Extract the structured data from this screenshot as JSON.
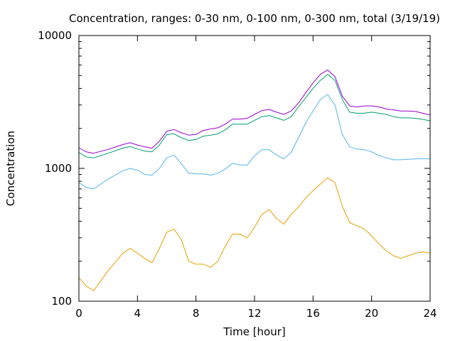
{
  "chart_data": {
    "type": "line",
    "title": "Concentration, ranges: 0-30 nm, 0-100 nm, 0-300 nm, total (3/19/19)",
    "xlabel": "Time [hour]",
    "ylabel": "Concentration",
    "xlim": [
      0,
      24
    ],
    "ylim": [
      100,
      10000
    ],
    "yscale": "log",
    "grid": false,
    "legend": "none",
    "x_ticks": [
      0,
      4,
      8,
      12,
      16,
      20,
      24
    ],
    "y_ticks": [
      100,
      1000,
      10000
    ],
    "x_tick_labels": [
      "0",
      "4",
      "8",
      "12",
      "16",
      "20",
      "24"
    ],
    "y_tick_labels": [
      "100",
      "1000",
      "10000"
    ],
    "x": [
      0,
      0.5,
      1,
      2,
      3,
      3.5,
      4,
      4.5,
      5,
      5.5,
      6,
      6.5,
      7,
      7.5,
      8,
      8.5,
      9,
      9.5,
      10,
      10.5,
      11,
      11.5,
      12,
      12.5,
      13,
      13.5,
      14,
      14.5,
      15,
      15.5,
      16,
      16.5,
      17,
      17.5,
      18,
      18.5,
      19,
      19.5,
      20,
      20.5,
      21,
      21.5,
      22,
      22.5,
      23,
      23.5,
      24
    ],
    "series": [
      {
        "color": "#e69f00",
        "values": [
          150,
          130,
          120,
          170,
          230,
          250,
          230,
          210,
          195,
          250,
          330,
          350,
          290,
          200,
          190,
          190,
          180,
          200,
          260,
          320,
          320,
          300,
          360,
          450,
          490,
          420,
          380,
          450,
          510,
          600,
          680,
          760,
          850,
          780,
          520,
          390,
          370,
          350,
          310,
          270,
          240,
          220,
          210,
          220,
          230,
          235,
          230
        ]
      },
      {
        "color": "#56b4e9",
        "values": [
          780,
          720,
          700,
          830,
          960,
          1000,
          970,
          900,
          890,
          1000,
          1200,
          1260,
          1080,
          920,
          910,
          910,
          890,
          920,
          990,
          1090,
          1060,
          1060,
          1240,
          1380,
          1380,
          1260,
          1180,
          1320,
          1700,
          2200,
          2700,
          3300,
          3600,
          3000,
          1800,
          1450,
          1400,
          1380,
          1330,
          1250,
          1200,
          1160,
          1160,
          1170,
          1180,
          1185,
          1180
        ]
      },
      {
        "color": "#009e73",
        "values": [
          1320,
          1220,
          1200,
          1300,
          1420,
          1460,
          1400,
          1350,
          1330,
          1500,
          1800,
          1820,
          1700,
          1620,
          1650,
          1750,
          1780,
          1820,
          1950,
          2150,
          2150,
          2150,
          2300,
          2450,
          2500,
          2400,
          2300,
          2450,
          2900,
          3400,
          4000,
          4600,
          5100,
          4600,
          3300,
          2650,
          2600,
          2600,
          2650,
          2600,
          2550,
          2450,
          2400,
          2400,
          2380,
          2340,
          2280
        ]
      },
      {
        "color": "#9400d3",
        "values": [
          1430,
          1330,
          1300,
          1390,
          1510,
          1560,
          1500,
          1450,
          1420,
          1600,
          1900,
          1960,
          1850,
          1780,
          1800,
          1930,
          1980,
          2020,
          2150,
          2350,
          2350,
          2380,
          2550,
          2720,
          2780,
          2650,
          2550,
          2700,
          3100,
          3700,
          4400,
          5100,
          5500,
          4900,
          3500,
          2950,
          2900,
          2950,
          2950,
          2900,
          2800,
          2750,
          2700,
          2700,
          2680,
          2600,
          2520
        ]
      }
    ]
  }
}
